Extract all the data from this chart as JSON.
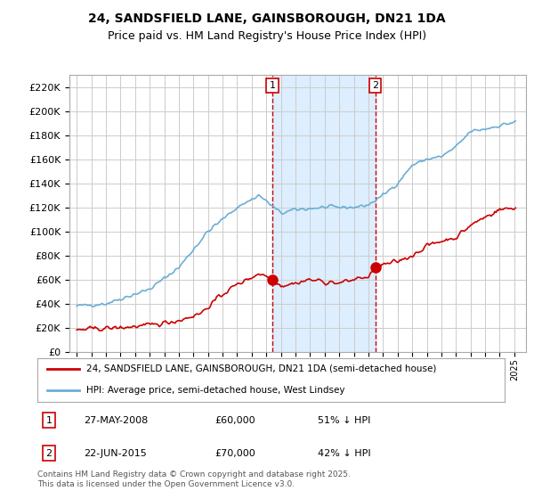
{
  "title_line1": "24, SANDSFIELD LANE, GAINSBOROUGH, DN21 1DA",
  "title_line2": "Price paid vs. HM Land Registry's House Price Index (HPI)",
  "legend_property": "24, SANDSFIELD LANE, GAINSBOROUGH, DN21 1DA (semi-detached house)",
  "legend_hpi": "HPI: Average price, semi-detached house, West Lindsey",
  "transaction1_date": "27-MAY-2008",
  "transaction1_price": "£60,000",
  "transaction1_hpi": "51% ↓ HPI",
  "transaction1_year": 2008.41,
  "transaction1_value": 60000,
  "transaction2_date": "22-JUN-2015",
  "transaction2_price": "£70,000",
  "transaction2_hpi": "42% ↓ HPI",
  "transaction2_year": 2015.47,
  "transaction2_value": 70000,
  "property_color": "#cc0000",
  "hpi_color": "#6baed6",
  "background_color": "#ffffff",
  "grid_color": "#cccccc",
  "shaded_region_color": "#ddeeff",
  "ylim": [
    0,
    230000
  ],
  "yticks": [
    0,
    20000,
    40000,
    60000,
    80000,
    100000,
    120000,
    140000,
    160000,
    180000,
    200000,
    220000
  ],
  "xlim_start": 1994.5,
  "xlim_end": 2025.8,
  "footer": "Contains HM Land Registry data © Crown copyright and database right 2025.\nThis data is licensed under the Open Government Licence v3.0."
}
